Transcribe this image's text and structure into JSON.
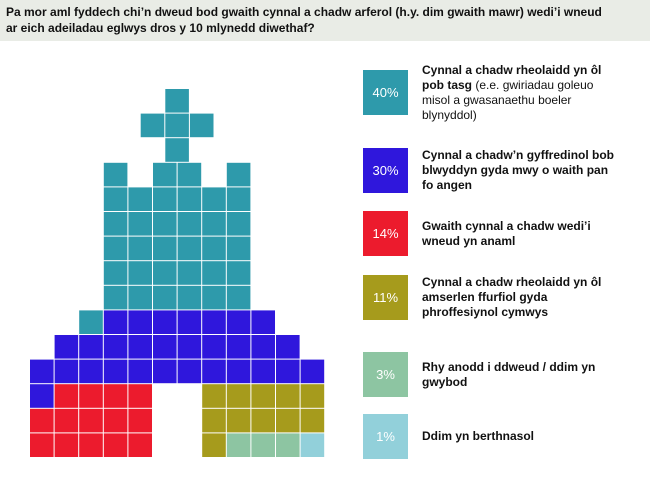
{
  "chart_data": {
    "type": "waffle",
    "title": "Pa mor aml fyddech chi’n dweud bod gwaith cynnal a chadw arferol (h.y. dim gwaith mawr) wedi’i wneud ar eich adeiladau eglwys dros y 10 mlynedd diwethaf?",
    "categories": [
      "Cynnal a chadw rheolaidd yn ôl pob tasg",
      "Cynnal a chadw’n gyffredinol bob blwyddyn gyda mwy o waith pan fo angen",
      "Gwaith cynnal a chadw wedi’i wneud yn anaml",
      "Cynnal a chadw rheolaidd yn ôl amserlen ffurfiol gyda phroffesiynol cymwys",
      "Rhy anodd i ddweud / ddim yn gwybod",
      "Ddim yn berthnasol"
    ],
    "category_notes": [
      "(e.e. gwiriadau goleuo misol a gwasanaethu boeler blynyddol)",
      null,
      null,
      null,
      null,
      null
    ],
    "values": [
      40,
      30,
      14,
      11,
      3,
      1
    ],
    "value_labels": [
      "40%",
      "30%",
      "14%",
      "11%",
      "3%",
      "1%"
    ],
    "colors": [
      "#2e9aab",
      "#2f17dc",
      "#ec1b2d",
      "#a69b1c",
      "#8dc5a2",
      "#92d0da"
    ]
  }
}
